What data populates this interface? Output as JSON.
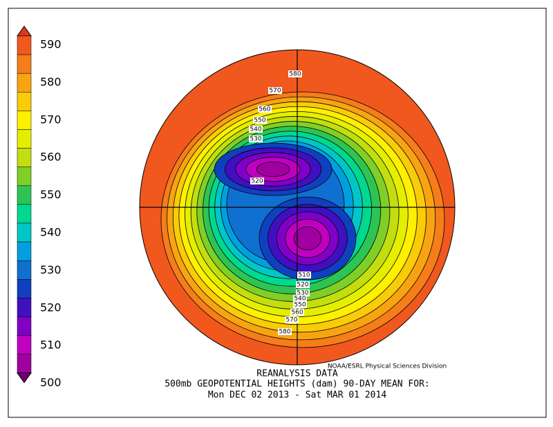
{
  "colorbar": {
    "labels": [
      "590",
      "580",
      "570",
      "560",
      "550",
      "540",
      "530",
      "520",
      "510",
      "500"
    ]
  },
  "contour_labels": [
    "580",
    "570",
    "560",
    "550",
    "540",
    "530",
    "520",
    "510",
    "520",
    "530",
    "540",
    "550",
    "560",
    "570",
    "580"
  ],
  "footer": {
    "credit": "NOAA/ESRL Physical Sciences Division",
    "line1": "REANALYSIS DATA",
    "line2": "500mb GEOPOTENTIAL HEIGHTS (dam)   90-DAY MEAN FOR:",
    "line3": "Mon DEC 02 2013 - Sat MAR 01 2014"
  }
}
